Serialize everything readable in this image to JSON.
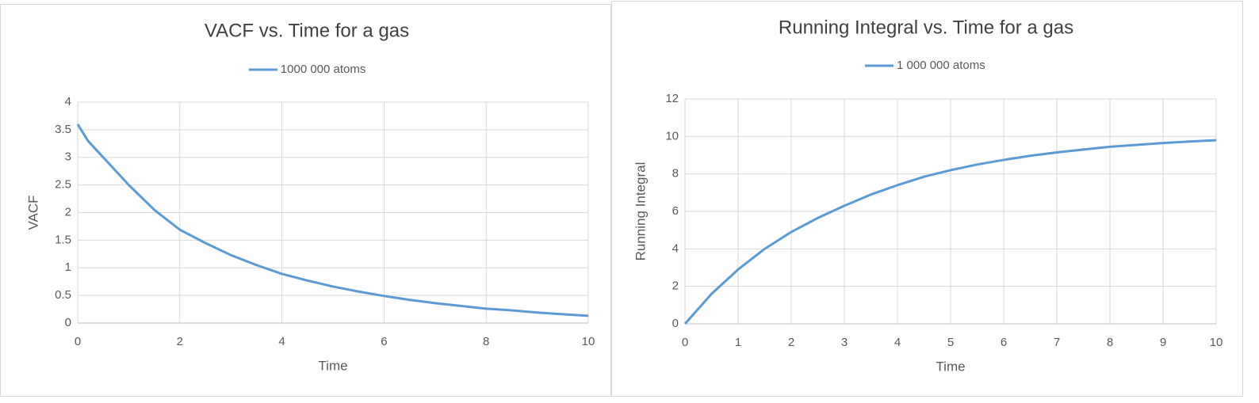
{
  "chart_data": [
    {
      "type": "line",
      "title": "VACF vs. Time for a gas",
      "x_label": "Time",
      "y_label": "VACF",
      "x": [
        0,
        0.1,
        0.2,
        0.3,
        0.5,
        1,
        1.5,
        2,
        2.5,
        3,
        3.5,
        4,
        4.5,
        5,
        5.5,
        6,
        6.5,
        7,
        7.5,
        8,
        8.5,
        9,
        9.5,
        10
      ],
      "series": [
        {
          "name": "1000 000 atoms",
          "color": "#5b9bd5",
          "values": [
            3.6,
            3.45,
            3.3,
            3.2,
            3.0,
            2.5,
            2.05,
            1.69,
            1.45,
            1.23,
            1.05,
            0.89,
            0.77,
            0.66,
            0.57,
            0.49,
            0.42,
            0.36,
            0.31,
            0.26,
            0.23,
            0.19,
            0.16,
            0.13
          ]
        }
      ],
      "xlim": [
        0,
        10
      ],
      "xticks": [
        0,
        2,
        4,
        6,
        8,
        10
      ],
      "ylim": [
        0,
        4
      ],
      "yticks": [
        0,
        0.5,
        1,
        1.5,
        2,
        2.5,
        3,
        3.5,
        4
      ],
      "grid": true,
      "legend_position": "top"
    },
    {
      "type": "line",
      "title": "Running Integral vs. Time for a gas",
      "x_label": "Time",
      "y_label": "Running Integral",
      "x": [
        0,
        0.5,
        1,
        1.5,
        2,
        2.5,
        3,
        3.5,
        4,
        4.5,
        5,
        5.5,
        6,
        6.5,
        7,
        7.5,
        8,
        8.5,
        9,
        9.5,
        10
      ],
      "series": [
        {
          "name": "1 000 000 atoms",
          "color": "#5b9bd5",
          "values": [
            0,
            1.6,
            2.9,
            4.0,
            4.9,
            5.65,
            6.3,
            6.9,
            7.4,
            7.85,
            8.2,
            8.5,
            8.75,
            8.97,
            9.15,
            9.3,
            9.45,
            9.55,
            9.65,
            9.73,
            9.8
          ]
        }
      ],
      "xlim": [
        0,
        10
      ],
      "xticks": [
        0,
        1,
        2,
        3,
        4,
        5,
        6,
        7,
        8,
        9,
        10
      ],
      "ylim": [
        0,
        12
      ],
      "yticks": [
        0,
        2,
        4,
        6,
        8,
        10,
        12
      ],
      "grid": true,
      "legend_position": "top"
    }
  ]
}
